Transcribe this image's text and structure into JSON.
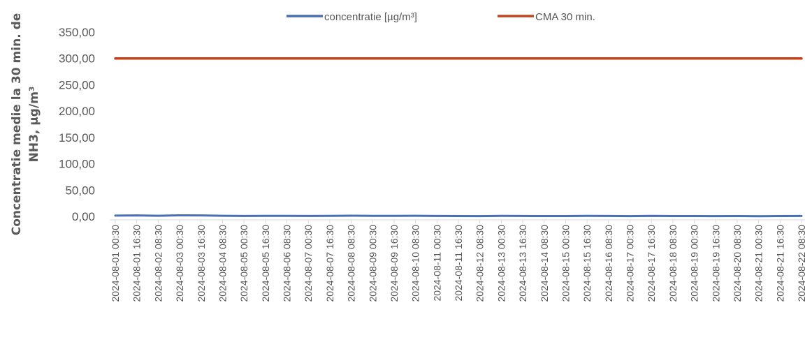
{
  "chart_data": {
    "type": "line",
    "ylabel_lines": [
      "Concentratie medie la 30 min. de",
      "NH3, µg/m³"
    ],
    "ylim": [
      0,
      350
    ],
    "yticks": [
      "0,00",
      "50,00",
      "100,00",
      "150,00",
      "200,00",
      "250,00",
      "300,00",
      "350,00"
    ],
    "grid": false,
    "legend_position": "top",
    "categories": [
      "2024-08-01 00:30",
      "2024-08-01 16:30",
      "2024-08-02 08:30",
      "2024-08-03 00:30",
      "2024-08-03 16:30",
      "2024-08-04 08:30",
      "2024-08-05 00:30",
      "2024-08-05 16:30",
      "2024-08-06 08:30",
      "2024-08-07 00:30",
      "2024-08-07 16:30",
      "2024-08-08 08:30",
      "2024-08-09 00:30",
      "2024-08-09 16:30",
      "2024-08-10 08:30",
      "2024-08-11 00:30",
      "2024-08-11 16:30",
      "2024-08-12 08:30",
      "2024-08-13 00:30",
      "2024-08-13 16:30",
      "2024-08-14 08:30",
      "2024-08-15 00:30",
      "2024-08-15 16:30",
      "2024-08-16 08:30",
      "2024-08-17 00:30",
      "2024-08-17 16:30",
      "2024-08-18 08:30",
      "2024-08-19 00:30",
      "2024-08-19 16:30",
      "2024-08-20 08:30",
      "2024-08-21 00:30",
      "2024-08-21 16:30",
      "2024-08-22 08:30"
    ],
    "series": [
      {
        "name": "concentratie [µg/m³]",
        "color": "#4a6fb5",
        "values": [
          1.5,
          1.8,
          1.2,
          2.0,
          1.8,
          1.2,
          0.8,
          1.0,
          0.9,
          0.8,
          1.1,
          1.3,
          0.9,
          1.0,
          1.2,
          0.8,
          0.6,
          0.5,
          0.9,
          0.8,
          0.6,
          0.7,
          0.9,
          0.8,
          0.5,
          1.1,
          0.6,
          0.7,
          0.5,
          0.6,
          0.4,
          0.6,
          0.8
        ]
      },
      {
        "name": "CMA 30 min.",
        "color": "#c0451e",
        "values": [
          300,
          300,
          300,
          300,
          300,
          300,
          300,
          300,
          300,
          300,
          300,
          300,
          300,
          300,
          300,
          300,
          300,
          300,
          300,
          300,
          300,
          300,
          300,
          300,
          300,
          300,
          300,
          300,
          300,
          300,
          300,
          300,
          300
        ]
      }
    ]
  }
}
